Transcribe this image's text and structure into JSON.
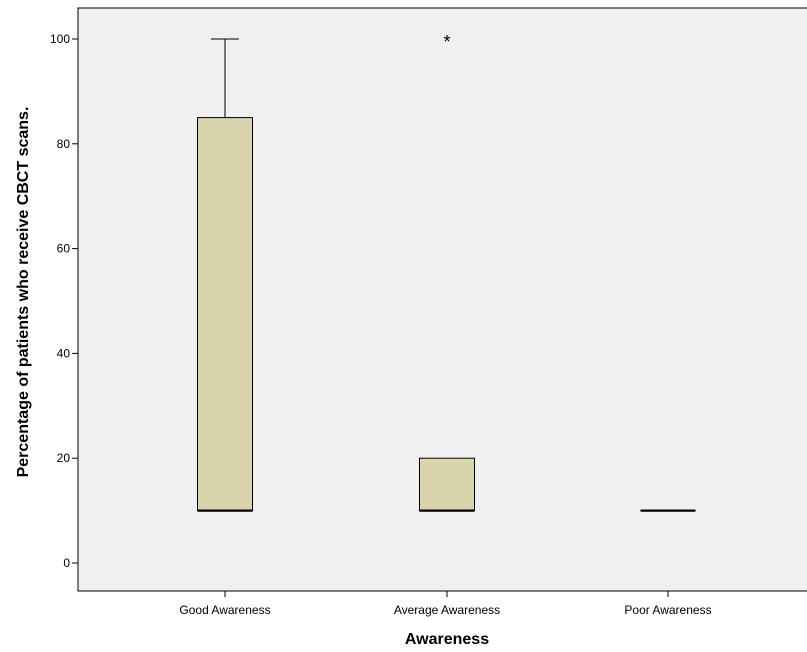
{
  "chart_data": {
    "type": "box",
    "xlabel": "Awareness",
    "ylabel": "Percentage of patients who receive CBCT scans.",
    "ylim": [
      -5,
      107
    ],
    "yticks": [
      0,
      20,
      40,
      60,
      80,
      100
    ],
    "categories": [
      "Good Awareness",
      "Average Awareness",
      "Poor Awareness"
    ],
    "boxes": [
      {
        "category": "Good Awareness",
        "whisker_low": 10,
        "q1": 10,
        "median": 10,
        "q3": 85,
        "whisker_high": 100,
        "outliers": []
      },
      {
        "category": "Average Awareness",
        "whisker_low": 10,
        "q1": 10,
        "median": 10,
        "q3": 20,
        "whisker_high": 20,
        "outliers": [
          100
        ]
      },
      {
        "category": "Poor Awareness",
        "whisker_low": 10,
        "q1": 10,
        "median": 10,
        "q3": 10,
        "whisker_high": 10,
        "outliers": []
      }
    ],
    "outlier_marker": "*",
    "grid": false,
    "plot_background": "#f0f0f0",
    "box_fill": "#d9d4ab",
    "line_color": "#000000"
  }
}
